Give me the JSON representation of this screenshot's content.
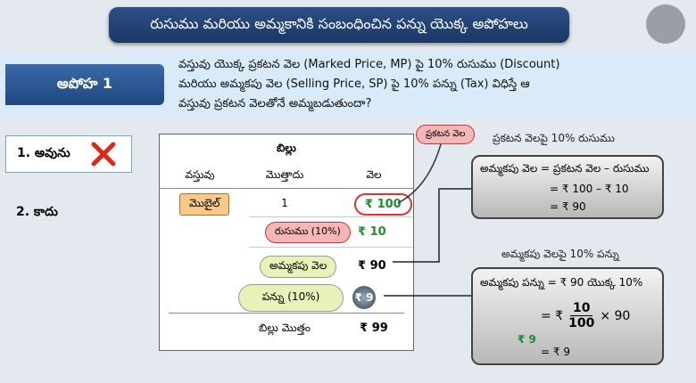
{
  "header": {
    "title": "రుసుము మరియు అమ్మకానికి సంబంధించిన పన్ను యొక్క అపోహలు"
  },
  "myth": {
    "label": "అపోహ 1",
    "question_lines": [
      "వస్తువు యొక్క ప్రకటన వెల (Marked Price, MP) పై 10% రుసుము (Discount)",
      "మరియు అమ్మకపు వెల (Selling Price, SP) పై 10% పన్ను (Tax) విధిస్తే ఆ",
      "వస్తువు ప్రకటన వెలతోనే అమ్మబడుతుందా?"
    ]
  },
  "options": [
    "1. అవును",
    "2. కాదు"
  ],
  "bill": {
    "title": "బిల్లు",
    "columns": [
      "వస్తువు",
      "మొత్తాదు",
      "వెల"
    ],
    "item": [
      "మొబైల్",
      "1",
      "₹ 100"
    ],
    "discount": [
      "రుసుము (10%)",
      "₹ 10"
    ],
    "selling_price": [
      "అమ్మకపు వెల",
      "₹ 90"
    ],
    "tax": [
      "పన్ను (10%)",
      "₹ 9"
    ],
    "total": [
      "బిల్లు మొత్తం",
      "₹ 99"
    ]
  },
  "callout": "ప్రకటన వెల",
  "discount_box": {
    "heading": "ప్రకటన వెలపై 10% రుసుము",
    "lines": [
      "అమ్మకపు వెల = ప్రకటన వెల – రుసుము",
      "= ₹ 100 – ₹ 10",
      "= ₹ 90"
    ]
  },
  "tax_box": {
    "heading": "అమ్మకపు వెలపై 10% పన్ను",
    "line1": "అమ్మకపు పన్ను = ₹ 90 యొక్క 10%",
    "line2_prefix": "= ₹",
    "numerator": "10",
    "denominator": "100",
    "line2_suffix": "× 90",
    "side_note": "₹ 9",
    "result": "= ₹ 9"
  }
}
